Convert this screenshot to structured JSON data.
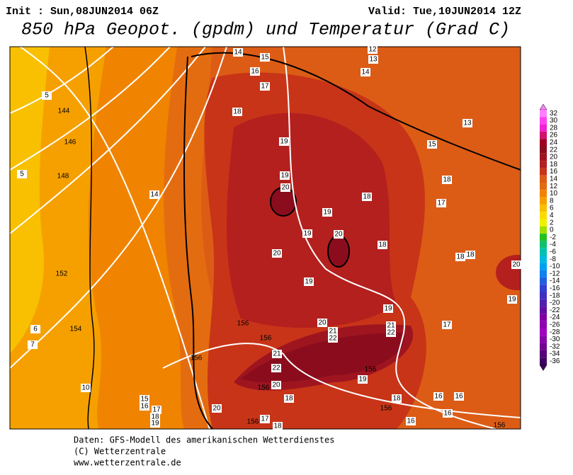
{
  "header": {
    "init": "Init : Sun,08JUN2014 06Z",
    "valid": "Valid: Tue,10JUN2014 12Z",
    "title": "850 hPa Geopot. (gpdm) und Temperatur (Grad C)"
  },
  "colorbar": {
    "ticks": [
      32,
      30,
      28,
      26,
      24,
      22,
      20,
      18,
      16,
      14,
      12,
      10,
      8,
      6,
      4,
      2,
      0,
      -2,
      -4,
      -6,
      -8,
      -10,
      -12,
      -14,
      -16,
      -18,
      -20,
      -22,
      -24,
      -26,
      -28,
      -30,
      -32,
      -34,
      -36
    ],
    "colors": [
      "#ff80ff",
      "#ff40f0",
      "#f020d0",
      "#d01070",
      "#a00020",
      "#8b0d1d",
      "#9e1520",
      "#b4201e",
      "#c83418",
      "#dc5c16",
      "#e46c10",
      "#f08400",
      "#f6a000",
      "#f8c000",
      "#fcdc00",
      "#f0f000",
      "#a0e000",
      "#20c020",
      "#10c070",
      "#00c0b0",
      "#00b8e0",
      "#00a0f0",
      "#1080f0",
      "#2060e0",
      "#3040d0",
      "#4030c0",
      "#5020b0",
      "#6010a0",
      "#8000a0",
      "#9000b0",
      "#a000c0",
      "#8800a8",
      "#700090",
      "#580078",
      "#400060"
    ]
  },
  "map": {
    "labels": [
      14,
      15,
      16,
      17,
      18,
      19,
      19,
      20,
      19,
      19,
      20,
      18,
      20,
      18,
      17,
      18,
      15,
      13,
      12,
      13,
      14,
      19,
      19,
      17,
      18,
      18,
      20,
      19,
      20,
      21,
      22,
      21,
      22,
      21,
      22,
      20,
      19,
      18,
      18,
      16,
      16,
      16,
      16,
      18,
      17,
      20,
      15,
      16,
      17,
      18,
      19,
      14,
      10,
      7,
      6,
      5,
      5,
      144,
      146,
      148,
      152,
      154,
      156,
      156,
      156,
      156,
      156,
      156,
      156,
      156
    ]
  },
  "footer": [
    "Daten: GFS-Modell des amerikanischen Wetterdienstes",
    "(C) Wetterzentrale",
    "www.wetterzentrale.de"
  ]
}
